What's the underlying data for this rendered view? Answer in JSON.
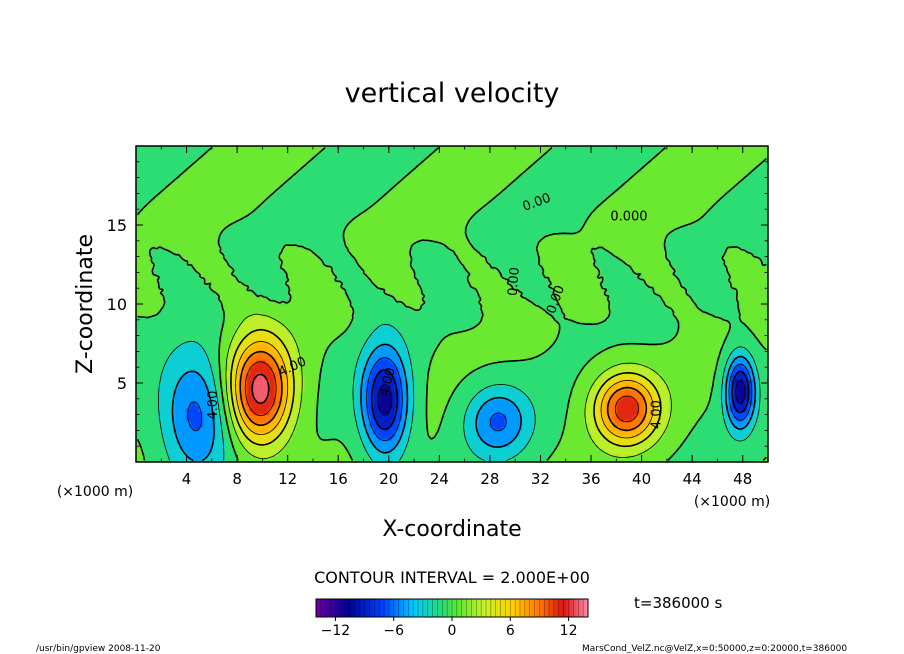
{
  "chart_data": {
    "type": "heatmap",
    "title": "vertical velocity",
    "xlabel": "X-coordinate",
    "ylabel": "Z-coordinate",
    "x_unit_left": "(×1000 m)",
    "x_unit_right": "(×1000 m)",
    "x_ticks": [
      "4",
      "8",
      "12",
      "16",
      "20",
      "24",
      "28",
      "32",
      "36",
      "40",
      "44",
      "48"
    ],
    "y_ticks": [
      "5",
      "10",
      "15"
    ],
    "xlim": [
      0,
      50
    ],
    "ylim": [
      0,
      20
    ],
    "contour_interval_text": "CONTOUR INTERVAL = 2.000E+00",
    "contour_labels": [
      {
        "text": "4.00",
        "x": 12.5,
        "z": 5.8,
        "rot": -25
      },
      {
        "text": "4.00",
        "x": 6.4,
        "z": 3.6,
        "rot": -90
      },
      {
        "text": "4.00",
        "x": 20.2,
        "z": 5.0,
        "rot": -75
      },
      {
        "text": "4.00",
        "x": 41.5,
        "z": 3.0,
        "rot": -90
      },
      {
        "text": "0.00",
        "x": 31.8,
        "z": 16.2,
        "rot": -20
      },
      {
        "text": "0.000",
        "x": 39.0,
        "z": 15.3,
        "rot": 0
      },
      {
        "text": "0.00",
        "x": 30.2,
        "z": 11.4,
        "rot": -85
      },
      {
        "text": "0.00",
        "x": 33.5,
        "z": 10.2,
        "rot": -70
      }
    ],
    "colorbar": {
      "min": -14,
      "max": 14,
      "ticks": [
        "−12",
        "−6",
        "0",
        "6",
        "12"
      ],
      "tick_values": [
        -12,
        -6,
        0,
        6,
        12
      ]
    },
    "time_label": "t=386000 s",
    "features": [
      {
        "kind": "updraft",
        "x": 9.8,
        "z": 4.5,
        "peak": 13,
        "sx": 1.8,
        "sz": 2.4
      },
      {
        "kind": "updraft",
        "x": 38.8,
        "z": 3.4,
        "peak": 11,
        "sx": 1.8,
        "sz": 1.6
      },
      {
        "kind": "downdraft",
        "x": 4.8,
        "z": 3.0,
        "peak": -7,
        "sx": 2.0,
        "sz": 2.8
      },
      {
        "kind": "downdraft",
        "x": 19.7,
        "z": 3.8,
        "peak": -11,
        "sx": 1.3,
        "sz": 2.4
      },
      {
        "kind": "downdraft",
        "x": 28.6,
        "z": 2.6,
        "peak": -6,
        "sx": 1.8,
        "sz": 1.6
      },
      {
        "kind": "downdraft",
        "x": 47.8,
        "z": 4.5,
        "peak": -11,
        "sx": 0.8,
        "sz": 1.6
      }
    ],
    "grid": false
  },
  "footer": {
    "left": "/usr/bin/gpview   2008-11-20",
    "right": "MarsCond_VelZ.nc@VelZ,x=0:50000,z=0:20000,t=386000"
  }
}
